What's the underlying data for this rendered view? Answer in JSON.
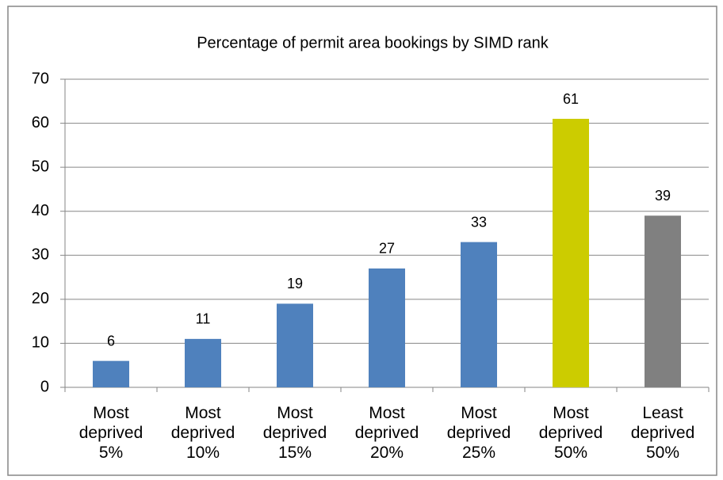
{
  "chart_data": {
    "type": "bar",
    "title": "Percentage of permit area bookings by SIMD rank",
    "categories": [
      "Most deprived 5%",
      "Most deprived 10%",
      "Most deprived 15%",
      "Most deprived 20%",
      "Most deprived 25%",
      "Most deprived 50%",
      "Least deprived 50%"
    ],
    "values": [
      6,
      11,
      19,
      27,
      33,
      61,
      39
    ],
    "colors": [
      "#4f81bd",
      "#4f81bd",
      "#4f81bd",
      "#4f81bd",
      "#4f81bd",
      "#cccc00",
      "#808080"
    ],
    "ylim": [
      0,
      70
    ],
    "yticks": [
      0,
      10,
      20,
      30,
      40,
      50,
      60,
      70
    ],
    "grid": true
  }
}
